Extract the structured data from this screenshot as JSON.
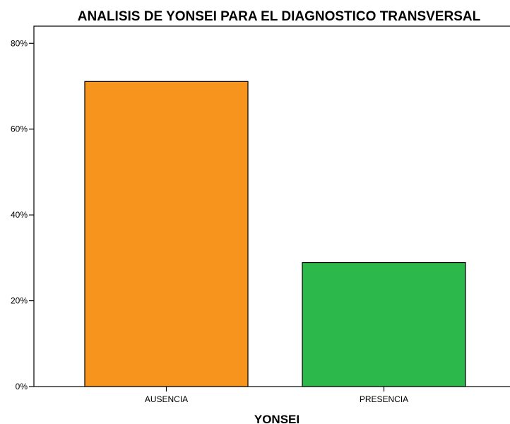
{
  "chart_data": {
    "type": "bar",
    "title": "ANALISIS DE YONSEI PARA EL DIAGNOSTICO TRANSVERSAL",
    "xlabel": "YONSEI",
    "ylabel": "",
    "ylim": [
      0,
      84
    ],
    "yticks": [
      0,
      20,
      40,
      60,
      80
    ],
    "ytick_labels": [
      "0%",
      "20%",
      "40%",
      "60%",
      "80%"
    ],
    "categories": [
      "AUSENCIA",
      "PRESENCIA"
    ],
    "values": [
      71.1,
      28.9
    ],
    "colors": [
      "#F7941D",
      "#2DB84B"
    ],
    "unit": "%",
    "grid": false,
    "legend": "none"
  }
}
